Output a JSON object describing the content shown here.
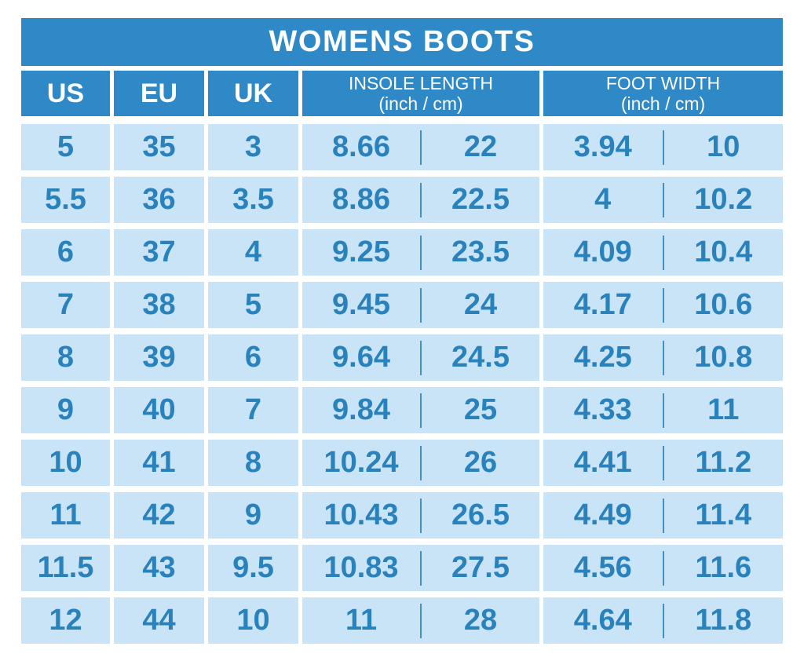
{
  "chart_data": {
    "type": "table",
    "title": "WOMENS BOOTS",
    "columns": [
      {
        "label": "US"
      },
      {
        "label": "EU"
      },
      {
        "label": "UK"
      },
      {
        "label": "INSOLE LENGTH",
        "sublabel": "(inch / cm)"
      },
      {
        "label": "FOOT WIDTH",
        "sublabel": "(inch / cm)"
      }
    ],
    "rows": [
      {
        "us": "5",
        "eu": "35",
        "uk": "3",
        "insole_inch": "8.66",
        "insole_cm": "22",
        "foot_inch": "3.94",
        "foot_cm": "10"
      },
      {
        "us": "5.5",
        "eu": "36",
        "uk": "3.5",
        "insole_inch": "8.86",
        "insole_cm": "22.5",
        "foot_inch": "4",
        "foot_cm": "10.2"
      },
      {
        "us": "6",
        "eu": "37",
        "uk": "4",
        "insole_inch": "9.25",
        "insole_cm": "23.5",
        "foot_inch": "4.09",
        "foot_cm": "10.4"
      },
      {
        "us": "7",
        "eu": "38",
        "uk": "5",
        "insole_inch": "9.45",
        "insole_cm": "24",
        "foot_inch": "4.17",
        "foot_cm": "10.6"
      },
      {
        "us": "8",
        "eu": "39",
        "uk": "6",
        "insole_inch": "9.64",
        "insole_cm": "24.5",
        "foot_inch": "4.25",
        "foot_cm": "10.8"
      },
      {
        "us": "9",
        "eu": "40",
        "uk": "7",
        "insole_inch": "9.84",
        "insole_cm": "25",
        "foot_inch": "4.33",
        "foot_cm": "11"
      },
      {
        "us": "10",
        "eu": "41",
        "uk": "8",
        "insole_inch": "10.24",
        "insole_cm": "26",
        "foot_inch": "4.41",
        "foot_cm": "11.2"
      },
      {
        "us": "11",
        "eu": "42",
        "uk": "9",
        "insole_inch": "10.43",
        "insole_cm": "26.5",
        "foot_inch": "4.49",
        "foot_cm": "11.4"
      },
      {
        "us": "11.5",
        "eu": "43",
        "uk": "9.5",
        "insole_inch": "10.83",
        "insole_cm": "27.5",
        "foot_inch": "4.56",
        "foot_cm": "11.6"
      },
      {
        "us": "12",
        "eu": "44",
        "uk": "10",
        "insole_inch": "11",
        "insole_cm": "28",
        "foot_inch": "4.64",
        "foot_cm": "11.8"
      }
    ]
  },
  "colors": {
    "header_blue": "#2E89C6",
    "cell_light_blue": "#C9E4F6",
    "value_text_blue": "#2A82BC",
    "title_text": "#FFFFFF",
    "background": "#FFFFFF"
  }
}
